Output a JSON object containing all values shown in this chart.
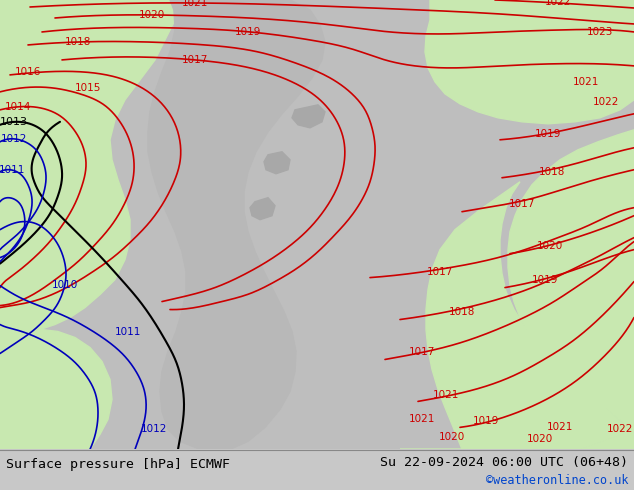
{
  "title_left": "Surface pressure [hPa] ECMWF",
  "title_right": "Su 22-09-2024 06:00 UTC (06+48)",
  "credit": "©weatheronline.co.uk",
  "bg_color": "#c8c8c8",
  "land_green": "#c8e8b0",
  "sea_gray": "#c0c0c0",
  "inner_gray": "#b0b0b8",
  "bottom_bar_color": "#d8d8d8",
  "red": "#cc0000",
  "blue": "#0000bb",
  "black": "#000000",
  "credit_color": "#0044cc",
  "figsize": [
    6.34,
    4.9
  ],
  "dpi": 100
}
